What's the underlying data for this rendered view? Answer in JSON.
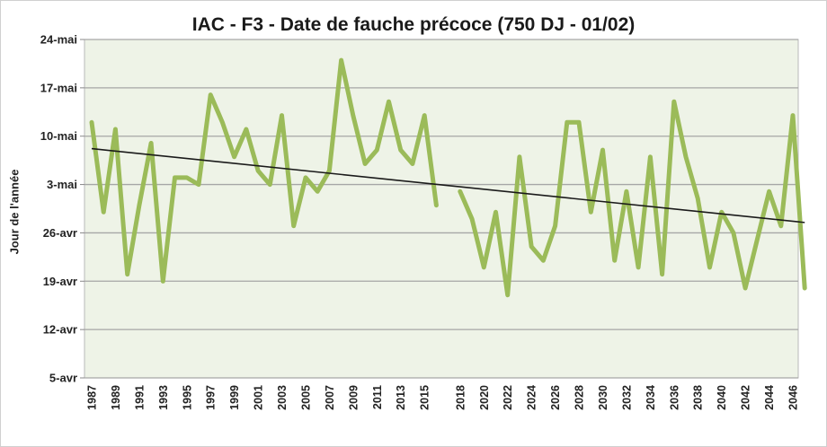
{
  "chart_data": {
    "type": "line",
    "title": "IAC - F3 - Date de fauche précoce (750 DJ - 01/02)",
    "ylabel": "Jour de l'année",
    "xlabel": "",
    "ylim": [
      125,
      174
    ],
    "yticks": [
      {
        "value": 125,
        "label": "5-avr"
      },
      {
        "value": 132,
        "label": "12-avr"
      },
      {
        "value": 139,
        "label": "19-avr"
      },
      {
        "value": 146,
        "label": "26-avr"
      },
      {
        "value": 153,
        "label": "3-mai"
      },
      {
        "value": 160,
        "label": "10-mai"
      },
      {
        "value": 167,
        "label": "17-mai"
      },
      {
        "value": 174,
        "label": "24-mai"
      }
    ],
    "x_categories": [
      "1987",
      "",
      "1989",
      "",
      "1991",
      "",
      "1993",
      "",
      "1995",
      "",
      "1997",
      "",
      "1999",
      "",
      "2001",
      "",
      "2003",
      "",
      "2005",
      "",
      "2007",
      "",
      "2009",
      "",
      "2011",
      "",
      "2013",
      "",
      "2015",
      "",
      "",
      "2018",
      "",
      "2020",
      "",
      "2022",
      "",
      "2024",
      "",
      "2026",
      "",
      "2028",
      "",
      "2030",
      "",
      "2032",
      "",
      "2034",
      "",
      "2036",
      "",
      "2038",
      "",
      "2040",
      "",
      "2042",
      "",
      "2044",
      "",
      "2046"
    ],
    "series": [
      {
        "color": "#9bbb59",
        "segments": [
          {
            "start_index": 0,
            "values": [
              162,
              149,
              161,
              140,
              150,
              159,
              139,
              154,
              154,
              153,
              166,
              162,
              157,
              161,
              155,
              153,
              163,
              147,
              154,
              152,
              155,
              171,
              163,
              156,
              158,
              165,
              158,
              156,
              163,
              150
            ]
          },
          {
            "start_index": 31,
            "values": [
              152,
              148,
              141,
              149,
              137,
              157,
              144,
              142,
              147,
              162,
              162,
              149,
              158,
              142,
              152,
              141,
              157,
              140,
              165,
              157,
              151,
              141,
              149,
              146,
              138,
              145,
              152,
              147,
              163,
              138
            ]
          }
        ]
      },
      {
        "color": "#1a1a1a",
        "type": "trend",
        "from": {
          "index": 0,
          "value": 158.2
        },
        "to": {
          "index": 60,
          "value": 147.5
        }
      }
    ],
    "grid": true,
    "legend": "none"
  }
}
